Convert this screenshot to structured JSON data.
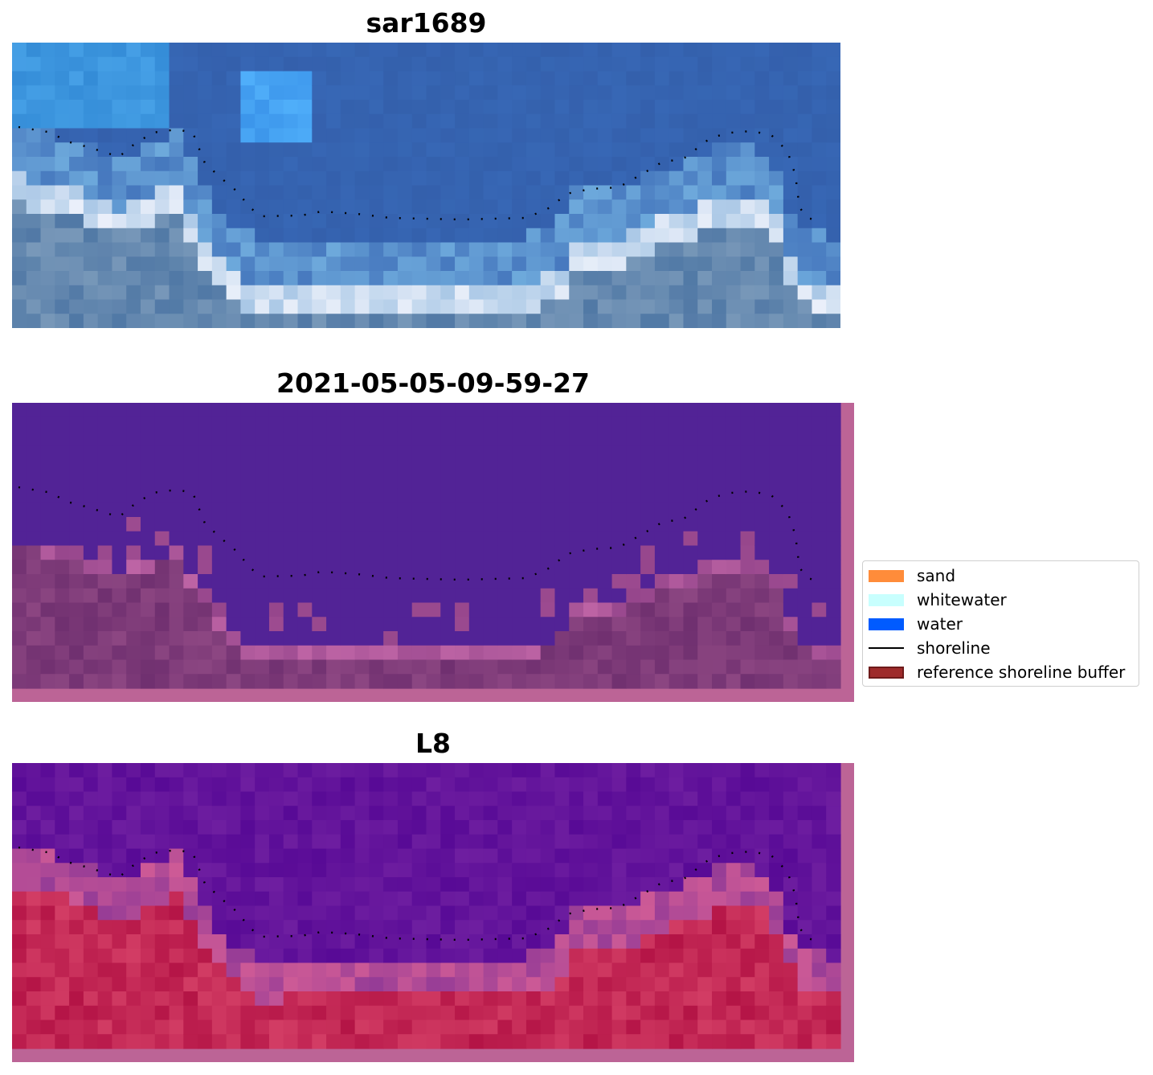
{
  "panels": [
    {
      "title": "sar1689",
      "kind": "rgb"
    },
    {
      "title": "2021-05-05-09-59-27",
      "kind": "classified"
    },
    {
      "title": "L8",
      "kind": "index"
    }
  ],
  "legend": {
    "items": [
      {
        "label": "sand",
        "color": "#ff8c3a",
        "type": "patch"
      },
      {
        "label": "whitewater",
        "color": "#c8fffe",
        "type": "patch"
      },
      {
        "label": "water",
        "color": "#005bff",
        "type": "patch"
      },
      {
        "label": "shoreline",
        "color": "#000000",
        "type": "line"
      },
      {
        "label": "reference shoreline buffer",
        "color": "#9e2b2b",
        "type": "patch"
      }
    ]
  }
}
